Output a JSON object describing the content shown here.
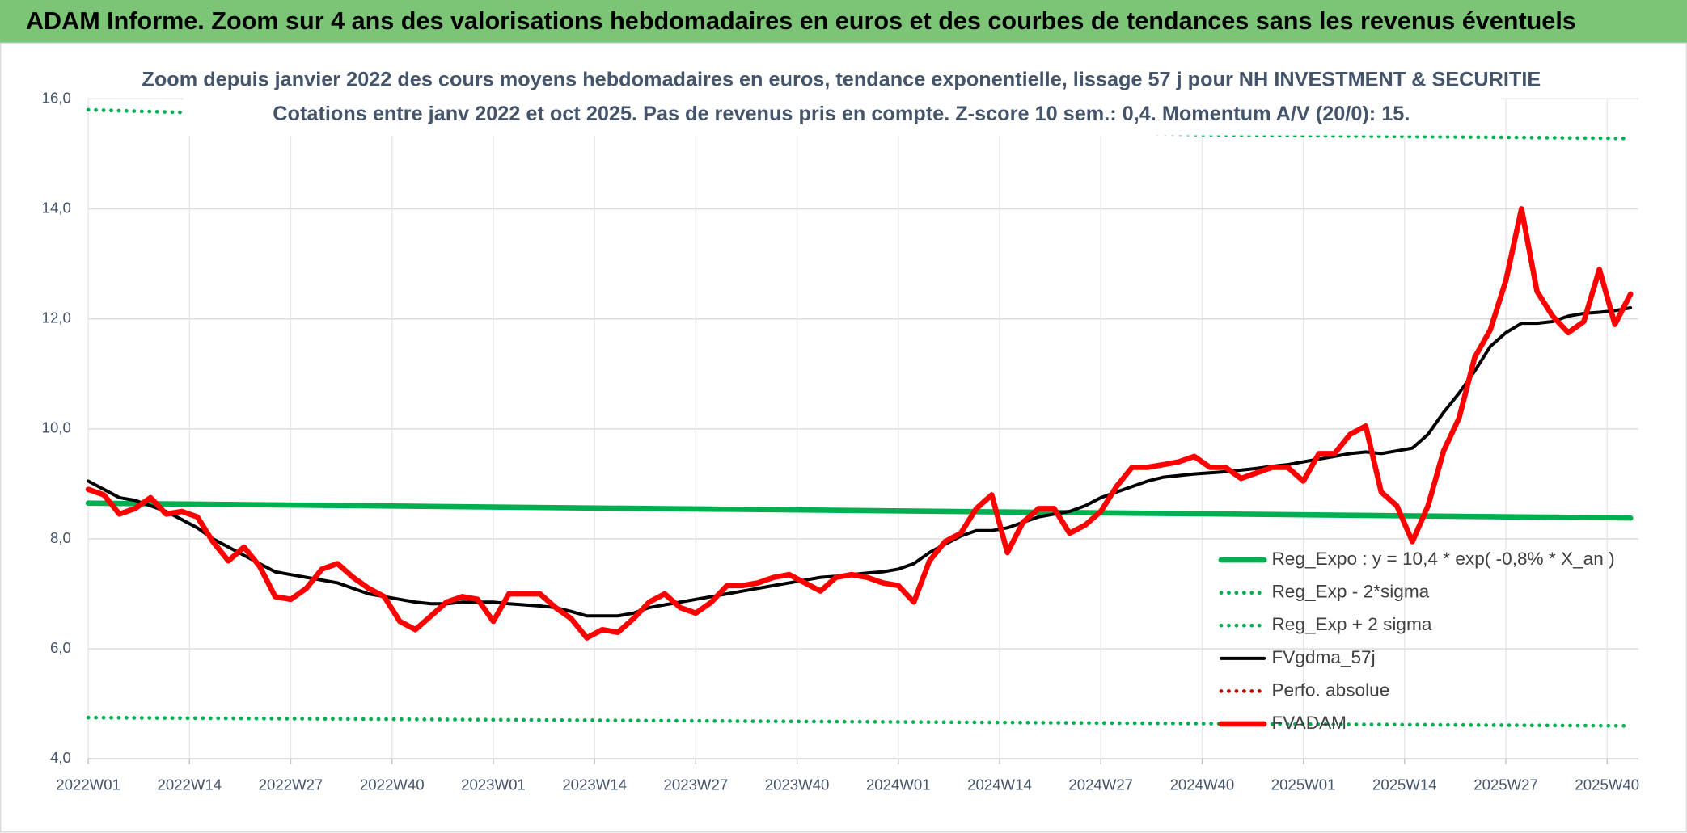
{
  "header": "ADAM Informe. Zoom sur 4 ans des valorisations hebdomadaires en euros et des courbes de tendances sans les revenus éventuels",
  "chart_data": {
    "type": "line",
    "title": "Zoom depuis janvier 2022 des cours moyens hebdomadaires en euros, tendance exponentielle, lissage 57 j pour NH INVESTMENT & SECURITIE",
    "subtitle": "Cotations entre janv 2022 et oct 2025. Pas de revenus pris en compte. Z-score 10 sem.: 0,4. Momentum A/V (20/0): 15.",
    "x": [
      0,
      2,
      4,
      6,
      8,
      10,
      12,
      14,
      16,
      18,
      20,
      22,
      24,
      26,
      28,
      30,
      32,
      34,
      36,
      38,
      40,
      42,
      44,
      46,
      48,
      50,
      52,
      54,
      56,
      58,
      60,
      62,
      64,
      66,
      68,
      70,
      72,
      74,
      76,
      78,
      80,
      82,
      84,
      86,
      88,
      90,
      92,
      94,
      96,
      98,
      100,
      102,
      104,
      106,
      108,
      110,
      112,
      114,
      116,
      118,
      120,
      122,
      124,
      126,
      128,
      130,
      132,
      134,
      136,
      138,
      140,
      142,
      144,
      146,
      148,
      150,
      152,
      154,
      156,
      158,
      160,
      162,
      164,
      166,
      168,
      170,
      172,
      174,
      176,
      178,
      180,
      182,
      184,
      186,
      188,
      190,
      192,
      194,
      196,
      198
    ],
    "xlim": [
      0,
      199
    ],
    "xticks": [
      {
        "value": 0,
        "label": "2022W01"
      },
      {
        "value": 13,
        "label": "2022W14"
      },
      {
        "value": 26,
        "label": "2022W27"
      },
      {
        "value": 39,
        "label": "2022W40"
      },
      {
        "value": 52,
        "label": "2023W01"
      },
      {
        "value": 65,
        "label": "2023W14"
      },
      {
        "value": 78,
        "label": "2023W27"
      },
      {
        "value": 91,
        "label": "2023W40"
      },
      {
        "value": 104,
        "label": "2024W01"
      },
      {
        "value": 117,
        "label": "2024W14"
      },
      {
        "value": 130,
        "label": "2024W27"
      },
      {
        "value": 143,
        "label": "2024W40"
      },
      {
        "value": 156,
        "label": "2025W01"
      },
      {
        "value": 169,
        "label": "2025W14"
      },
      {
        "value": 182,
        "label": "2025W27"
      },
      {
        "value": 195,
        "label": "2025W40"
      }
    ],
    "ylim": [
      4,
      16
    ],
    "yticks": [
      {
        "value": 4,
        "label": "4,0"
      },
      {
        "value": 6,
        "label": "6,0"
      },
      {
        "value": 8,
        "label": "8,0"
      },
      {
        "value": 10,
        "label": "10,0"
      },
      {
        "value": 12,
        "label": "12,0"
      },
      {
        "value": 14,
        "label": "14,0"
      },
      {
        "value": 16,
        "label": "16,0"
      }
    ],
    "grid": true,
    "legend": "lower right",
    "series": [
      {
        "name": "Reg_Expo : y = 10,4 * exp( -0,8% *  X_an )",
        "color": "#00b050",
        "style": "solid",
        "x": [
          0,
          198
        ],
        "values": [
          8.65,
          8.38
        ]
      },
      {
        "name": "Reg_Exp - 2*sigma",
        "color": "#00b050",
        "style": "dotted",
        "x": [
          0,
          198
        ],
        "values": [
          4.75,
          4.6
        ]
      },
      {
        "name": "Reg_Exp + 2 sigma",
        "color": "#00b050",
        "style": "dotted",
        "x": [
          0,
          13,
          143,
          198
        ],
        "values": [
          15.8,
          15.75,
          15.35,
          15.28
        ]
      },
      {
        "name": "FVgdma_57j",
        "color": "#000000",
        "style": "solid",
        "values": [
          9.05,
          8.9,
          8.75,
          8.7,
          8.6,
          8.5,
          8.35,
          8.2,
          8.0,
          7.85,
          7.7,
          7.55,
          7.4,
          7.35,
          7.3,
          7.25,
          7.2,
          7.1,
          7.0,
          6.95,
          6.9,
          6.85,
          6.82,
          6.82,
          6.85,
          6.85,
          6.85,
          6.82,
          6.8,
          6.78,
          6.75,
          6.68,
          6.6,
          6.6,
          6.6,
          6.65,
          6.75,
          6.8,
          6.85,
          6.9,
          6.95,
          7.0,
          7.05,
          7.1,
          7.15,
          7.2,
          7.25,
          7.3,
          7.32,
          7.35,
          7.38,
          7.4,
          7.45,
          7.55,
          7.75,
          7.9,
          8.05,
          8.15,
          8.15,
          8.2,
          8.3,
          8.4,
          8.45,
          8.5,
          8.6,
          8.75,
          8.85,
          8.95,
          9.05,
          9.12,
          9.15,
          9.18,
          9.2,
          9.22,
          9.25,
          9.28,
          9.32,
          9.35,
          9.4,
          9.45,
          9.5,
          9.55,
          9.58,
          9.55,
          9.6,
          9.65,
          9.9,
          10.3,
          10.65,
          11.05,
          11.5,
          11.75,
          11.92,
          11.92,
          11.95,
          12.05,
          12.1,
          12.12,
          12.15,
          12.2
        ]
      },
      {
        "name": "Perfo. absolue",
        "color": "#c00000",
        "style": "dotted",
        "x": [],
        "values": []
      },
      {
        "name": "FVADAM",
        "color": "#ff0000",
        "style": "solid",
        "values": [
          8.9,
          8.8,
          8.45,
          8.55,
          8.75,
          8.45,
          8.5,
          8.4,
          7.95,
          7.6,
          7.85,
          7.5,
          6.95,
          6.9,
          7.1,
          7.45,
          7.55,
          7.3,
          7.1,
          6.95,
          6.5,
          6.35,
          6.6,
          6.85,
          6.95,
          6.9,
          6.5,
          7.0,
          7.0,
          7.0,
          6.75,
          6.55,
          6.2,
          6.35,
          6.3,
          6.55,
          6.85,
          7.0,
          6.75,
          6.65,
          6.85,
          7.15,
          7.15,
          7.2,
          7.3,
          7.35,
          7.2,
          7.05,
          7.3,
          7.35,
          7.3,
          7.2,
          7.15,
          6.85,
          7.6,
          7.95,
          8.1,
          8.55,
          8.8,
          7.75,
          8.3,
          8.55,
          8.55,
          8.1,
          8.25,
          8.5,
          8.95,
          9.3,
          9.3,
          9.35,
          9.4,
          9.5,
          9.3,
          9.3,
          9.1,
          9.2,
          9.3,
          9.3,
          9.05,
          9.55,
          9.55,
          9.9,
          10.05,
          8.85,
          8.6,
          7.95,
          8.6,
          9.6,
          10.2,
          11.3,
          11.8,
          12.7,
          14.0,
          12.5,
          12.05,
          11.75,
          11.95,
          12.9,
          11.9,
          12.45
        ]
      }
    ]
  }
}
